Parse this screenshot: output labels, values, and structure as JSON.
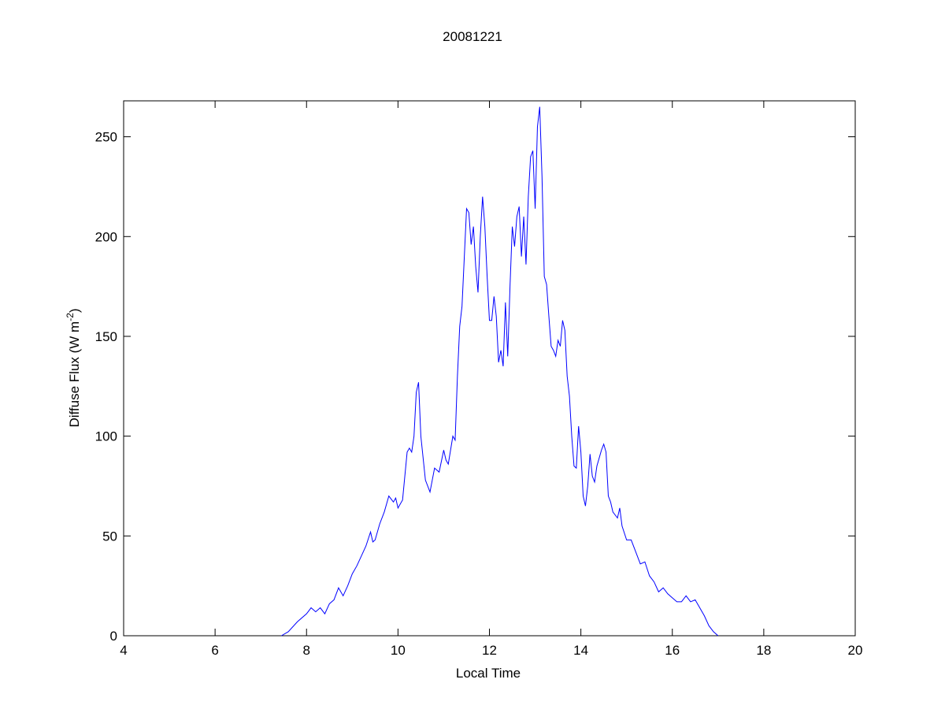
{
  "chart_data": {
    "type": "line",
    "title": "20081221",
    "x_label": "Local Time",
    "y_label": {
      "text": "Diffuse Flux (W m",
      "superscript": "-2",
      "suffix": ")"
    },
    "xlim": [
      4,
      20
    ],
    "xticks": [
      4,
      6,
      8,
      10,
      12,
      14,
      16,
      18,
      20
    ],
    "ylim": [
      0,
      268
    ],
    "yticks": [
      0,
      50,
      100,
      150,
      200,
      250
    ],
    "grid": false,
    "x": [
      7.45,
      7.6,
      7.8,
      8.0,
      8.1,
      8.2,
      8.3,
      8.4,
      8.5,
      8.6,
      8.7,
      8.8,
      8.9,
      9.0,
      9.1,
      9.2,
      9.3,
      9.4,
      9.45,
      9.5,
      9.6,
      9.7,
      9.8,
      9.9,
      9.95,
      10.0,
      10.1,
      10.2,
      10.25,
      10.3,
      10.35,
      10.4,
      10.45,
      10.5,
      10.6,
      10.7,
      10.8,
      10.9,
      11.0,
      11.05,
      11.1,
      11.2,
      11.25,
      11.3,
      11.35,
      11.4,
      11.5,
      11.55,
      11.6,
      11.65,
      11.7,
      11.75,
      11.8,
      11.85,
      11.9,
      11.95,
      12.0,
      12.05,
      12.1,
      12.15,
      12.2,
      12.25,
      12.3,
      12.35,
      12.4,
      12.45,
      12.5,
      12.55,
      12.6,
      12.65,
      12.7,
      12.75,
      12.8,
      12.85,
      12.9,
      12.95,
      13.0,
      13.05,
      13.1,
      13.15,
      13.2,
      13.25,
      13.3,
      13.35,
      13.4,
      13.45,
      13.5,
      13.55,
      13.6,
      13.65,
      13.7,
      13.75,
      13.8,
      13.85,
      13.9,
      13.95,
      14.0,
      14.05,
      14.1,
      14.15,
      14.2,
      14.25,
      14.3,
      14.35,
      14.45,
      14.5,
      14.55,
      14.6,
      14.65,
      14.7,
      14.8,
      14.85,
      14.9,
      15.0,
      15.1,
      15.2,
      15.3,
      15.4,
      15.5,
      15.6,
      15.7,
      15.8,
      15.9,
      16.0,
      16.1,
      16.2,
      16.3,
      16.4,
      16.5,
      16.6,
      16.7,
      16.8,
      16.9,
      17.0
    ],
    "series": [
      {
        "color": "#0000ff",
        "values": [
          0,
          2,
          7,
          11,
          14,
          12,
          14,
          11,
          16,
          18,
          24,
          20,
          25,
          31,
          35,
          40,
          45,
          52,
          47,
          48,
          56,
          62,
          70,
          67,
          69,
          64,
          68,
          92,
          94,
          92,
          100,
          122,
          127,
          100,
          78,
          72,
          84,
          82,
          93,
          88,
          86,
          100,
          98,
          130,
          155,
          165,
          214,
          212,
          196,
          205,
          185,
          172,
          200,
          220,
          205,
          180,
          158,
          158,
          170,
          160,
          137,
          143,
          135,
          167,
          140,
          175,
          205,
          195,
          210,
          215,
          190,
          210,
          186,
          220,
          240,
          243,
          214,
          255,
          265,
          230,
          180,
          176,
          160,
          145,
          143,
          140,
          148,
          145,
          158,
          153,
          130,
          120,
          100,
          85,
          84,
          105,
          92,
          70,
          65,
          75,
          91,
          80,
          77,
          85,
          93,
          96,
          92,
          70,
          67,
          62,
          59,
          64,
          55,
          48,
          48,
          42,
          36,
          37,
          30,
          27,
          22,
          24,
          21,
          19,
          17,
          17,
          20,
          17,
          18,
          14,
          10,
          5,
          2,
          0
        ]
      }
    ]
  }
}
